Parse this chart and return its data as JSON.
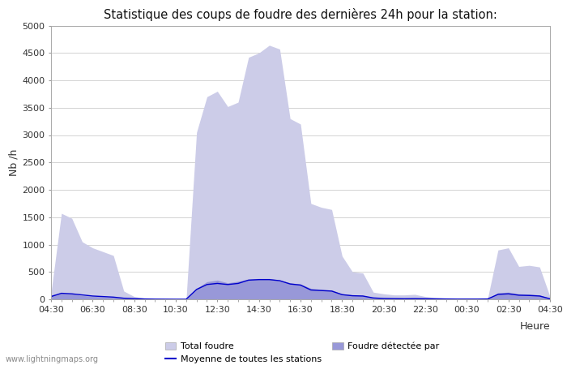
{
  "title": "Statistique des coups de foudre des dernières 24h pour la station:",
  "xlabel": "Heure",
  "ylabel": "Nb /h",
  "ylim": [
    0,
    5000
  ],
  "yticks": [
    0,
    500,
    1000,
    1500,
    2000,
    2500,
    3000,
    3500,
    4000,
    4500,
    5000
  ],
  "xtick_labels": [
    "04:30",
    "06:30",
    "08:30",
    "10:30",
    "12:30",
    "14:30",
    "16:30",
    "18:30",
    "20:30",
    "22:30",
    "00:30",
    "02:30",
    "04:30"
  ],
  "bg_color": "#ffffff",
  "grid_color": "#cccccc",
  "fill_color_total": "#cccce8",
  "fill_color_detected": "#9898d8",
  "line_color": "#0000cc",
  "watermark": "www.lightningmaps.org",
  "total_foudre": [
    120,
    1570,
    1480,
    1050,
    940,
    870,
    800,
    150,
    50,
    20,
    10,
    5,
    3,
    2,
    3050,
    3700,
    3800,
    3520,
    3600,
    4420,
    4500,
    4640,
    4570,
    3300,
    3200,
    1750,
    1680,
    1640,
    790,
    500,
    480,
    130,
    100,
    80,
    80,
    90,
    50,
    30,
    20,
    10,
    10,
    10,
    15,
    900,
    940,
    600,
    620,
    590,
    50
  ],
  "detected_foudre": [
    80,
    110,
    100,
    70,
    55,
    45,
    35,
    25,
    15,
    8,
    5,
    3,
    2,
    1,
    200,
    320,
    350,
    300,
    330,
    370,
    380,
    380,
    350,
    300,
    280,
    200,
    180,
    170,
    100,
    80,
    70,
    30,
    20,
    20,
    20,
    25,
    15,
    10,
    8,
    5,
    5,
    5,
    8,
    120,
    130,
    100,
    95,
    80,
    15
  ],
  "moyenne": [
    50,
    110,
    100,
    80,
    60,
    50,
    40,
    20,
    12,
    6,
    3,
    2,
    1,
    1,
    180,
    270,
    290,
    270,
    290,
    350,
    360,
    360,
    340,
    280,
    260,
    170,
    160,
    150,
    85,
    65,
    60,
    25,
    15,
    12,
    10,
    12,
    10,
    8,
    6,
    4,
    4,
    4,
    6,
    90,
    100,
    75,
    70,
    60,
    10
  ]
}
